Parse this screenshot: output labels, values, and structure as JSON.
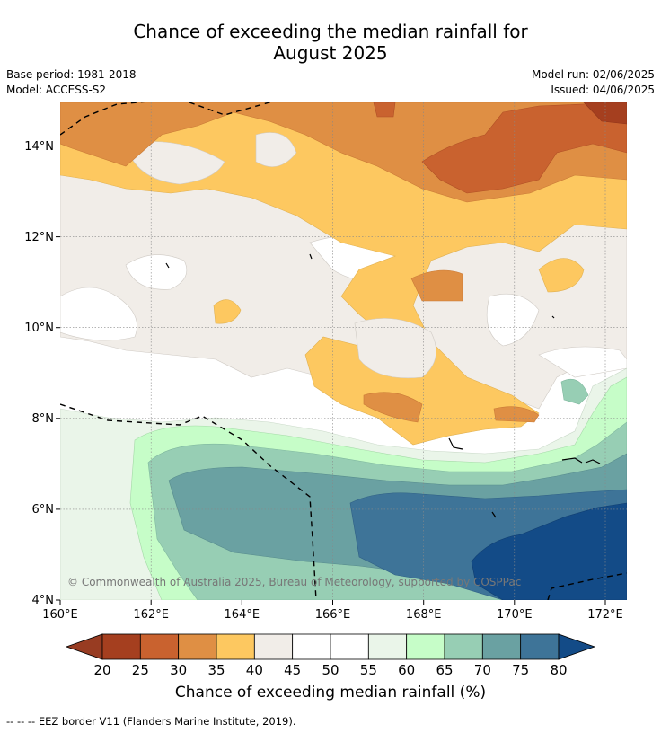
{
  "header": {
    "title_line1": "Chance of exceeding the median rainfall for",
    "title_line2": "August 2025",
    "base_period": "Base period: 1981-2018",
    "model": "Model: ACCESS-S2",
    "model_run": "Model run: 02/06/2025",
    "issued": "Issued: 04/06/2025"
  },
  "map": {
    "x_ticks": [
      "160°E",
      "162°E",
      "164°E",
      "166°E",
      "168°E",
      "170°E",
      "172°E"
    ],
    "y_ticks": [
      "14°N",
      "12°N",
      "10°N",
      "8°N",
      "6°N",
      "4°N"
    ],
    "copyright": "© Commonwealth of Australia 2025, Bureau of Meteorology, supported by COSPPac"
  },
  "colorbar": {
    "labels": [
      "20",
      "25",
      "30",
      "35",
      "40",
      "45",
      "50",
      "55",
      "60",
      "65",
      "70",
      "75",
      "80"
    ],
    "colors": [
      "#a53f1f",
      "#c9622f",
      "#df8f44",
      "#fdc860",
      "#f1ede8",
      "#ffffff",
      "#ffffff",
      "#eaf5e9",
      "#c6fdc8",
      "#97ceb4",
      "#6aa1a2",
      "#3e7498",
      "#134b87"
    ],
    "low_arrow_color": "#983c22",
    "high_arrow_color": "#134b87",
    "title": "Chance of exceeding median rainfall (%)"
  },
  "footnote": "--  --  -- EEZ border V11 (Flanders Marine Institute, 2019)."
}
